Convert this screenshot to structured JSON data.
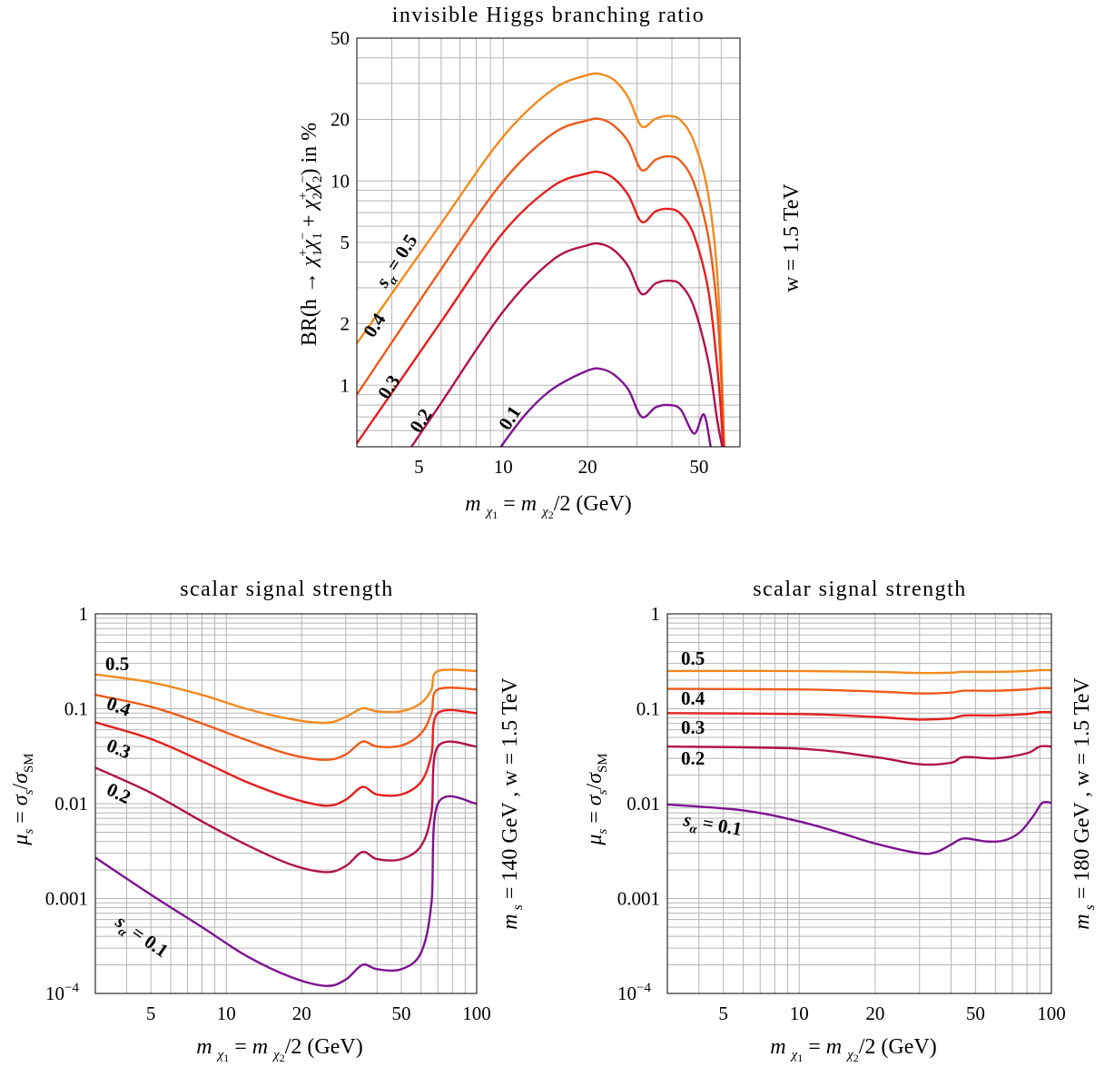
{
  "chart_data": [
    {
      "type": "line",
      "title": "invisible Higgs branching ratio",
      "xlabel": "m χ1 = m χ2/2  (GeV)",
      "ylabel": "BR(h → χ1+χ1− + χ2+χ2−)  in %",
      "side_label": "w = 1.5 TeV",
      "xscale": "log",
      "yscale": "log",
      "xlim": [
        3,
        70
      ],
      "ylim": [
        0.5,
        50
      ],
      "xticks": [
        {
          "v": 5,
          "label": "5"
        },
        {
          "v": 10,
          "label": "10"
        },
        {
          "v": 20,
          "label": "20"
        },
        {
          "v": 50,
          "label": "50"
        }
      ],
      "yticks": [
        {
          "v": 1,
          "label": "1"
        },
        {
          "v": 2,
          "label": "2"
        },
        {
          "v": 5,
          "label": "5"
        },
        {
          "v": 10,
          "label": "10"
        },
        {
          "v": 20,
          "label": "20"
        },
        {
          "v": 50,
          "label": "50"
        }
      ],
      "grid": true,
      "series": [
        {
          "name": "sα = 0.5",
          "color": "#f28a1e",
          "x": [
            3,
            6,
            10,
            15,
            20,
            22.5,
            25,
            28,
            31.2,
            35,
            39,
            43,
            48,
            54,
            58.5,
            61.5
          ],
          "y": [
            1.6,
            6.2,
            16.5,
            28,
            33,
            33.2,
            31,
            25.5,
            18.5,
            20.2,
            20.8,
            19.8,
            15.5,
            8.5,
            3,
            0.5
          ]
        },
        {
          "name": "0.4",
          "color": "#ee5a1a",
          "x": [
            3,
            6,
            10,
            15,
            20,
            22.5,
            25,
            28,
            31.2,
            35,
            39,
            43,
            48,
            54,
            58.5,
            61.5
          ],
          "y": [
            0.9,
            3.7,
            10,
            17,
            19.8,
            20,
            18.5,
            15.5,
            11.3,
            12.7,
            13.2,
            12.5,
            9.7,
            5.3,
            2,
            0.5
          ]
        },
        {
          "name": "0.3",
          "color": "#e41e1e",
          "x": [
            3,
            6,
            10,
            15,
            20,
            22.5,
            25,
            28,
            31.2,
            35,
            39,
            43,
            48,
            54,
            58.5,
            61
          ],
          "y": [
            0.52,
            2.05,
            5.6,
            9.4,
            10.9,
            11,
            10.2,
            8.5,
            6.3,
            7.1,
            7.3,
            6.9,
            5.4,
            2.9,
            1.1,
            0.5
          ]
        },
        {
          "name": "0.2",
          "color": "#b0124e",
          "x": [
            4.7,
            6,
            10,
            15,
            20,
            22.5,
            25,
            28,
            31.2,
            35,
            39,
            43,
            48,
            54,
            58,
            60.5
          ],
          "y": [
            0.5,
            0.82,
            2.3,
            4.1,
            4.85,
            4.9,
            4.55,
            3.8,
            2.8,
            3.15,
            3.25,
            3.1,
            2.4,
            1.3,
            0.68,
            0.5
          ]
        },
        {
          "name": "0.1",
          "color": "#7d1391",
          "x": [
            9.8,
            12,
            15,
            20,
            22.5,
            25,
            28,
            31.2,
            35,
            39,
            43,
            48,
            52,
            55
          ],
          "y": [
            0.5,
            0.72,
            0.96,
            1.18,
            1.2,
            1.12,
            0.95,
            0.7,
            0.78,
            0.8,
            0.76,
            0.58,
            0.72,
            0.5
          ]
        }
      ]
    },
    {
      "type": "line",
      "title": "scalar signal strength",
      "xlabel": "m χ1 = m χ2/2  (GeV)",
      "ylabel": "μs = σs/σSM",
      "side_label": "m s = 140 GeV ,  w = 1.5 TeV",
      "xscale": "log",
      "yscale": "log",
      "xlim": [
        3,
        100
      ],
      "ylim": [
        0.0001,
        1
      ],
      "xticks": [
        {
          "v": 5,
          "label": "5"
        },
        {
          "v": 10,
          "label": "10"
        },
        {
          "v": 20,
          "label": "20"
        },
        {
          "v": 50,
          "label": "50"
        },
        {
          "v": 100,
          "label": "100"
        }
      ],
      "yticks": [
        {
          "v": 0.0001,
          "label": "10",
          "sup": "−4"
        },
        {
          "v": 0.001,
          "label": "0.001"
        },
        {
          "v": 0.01,
          "label": "0.01"
        },
        {
          "v": 0.1,
          "label": "0.1"
        },
        {
          "v": 1,
          "label": "1"
        }
      ],
      "grid": true,
      "series": [
        {
          "name": "0.5",
          "color": "#f28a1e",
          "x": [
            3,
            5,
            8,
            12,
            18,
            25,
            30,
            35,
            40,
            50,
            60,
            66,
            70,
            100
          ],
          "y": [
            0.23,
            0.19,
            0.14,
            0.1,
            0.078,
            0.071,
            0.082,
            0.101,
            0.094,
            0.094,
            0.115,
            0.16,
            0.25,
            0.25
          ]
        },
        {
          "name": "0.4",
          "color": "#ee5a1a",
          "x": [
            3,
            5,
            8,
            12,
            18,
            25,
            30,
            35,
            40,
            50,
            60,
            66,
            70,
            100
          ],
          "y": [
            0.14,
            0.105,
            0.07,
            0.047,
            0.033,
            0.029,
            0.033,
            0.045,
            0.04,
            0.041,
            0.055,
            0.09,
            0.16,
            0.16
          ]
        },
        {
          "name": "0.3",
          "color": "#e41e1e",
          "x": [
            3,
            5,
            8,
            12,
            18,
            25,
            30,
            35,
            40,
            50,
            60,
            66,
            70,
            100
          ],
          "y": [
            0.072,
            0.048,
            0.028,
            0.017,
            0.0115,
            0.0095,
            0.011,
            0.015,
            0.0125,
            0.0125,
            0.017,
            0.033,
            0.09,
            0.09
          ]
        },
        {
          "name": "0.2",
          "color": "#b0124e",
          "x": [
            3,
            5,
            8,
            12,
            18,
            25,
            30,
            35,
            40,
            50,
            60,
            66,
            70,
            100
          ],
          "y": [
            0.024,
            0.013,
            0.0065,
            0.0037,
            0.0023,
            0.0019,
            0.0022,
            0.0031,
            0.0026,
            0.0026,
            0.0036,
            0.008,
            0.04,
            0.04
          ]
        },
        {
          "name": "sα = 0.1",
          "color": "#7d1391",
          "x": [
            3,
            5,
            8,
            12,
            18,
            25,
            30,
            35,
            40,
            50,
            60,
            66,
            70,
            100
          ],
          "y": [
            0.0027,
            0.0011,
            0.0005,
            0.00025,
            0.00015,
            0.00012,
            0.00014,
            0.0002,
            0.00018,
            0.00018,
            0.00027,
            0.0009,
            0.01,
            0.01
          ]
        }
      ]
    },
    {
      "type": "line",
      "title": "scalar signal strength",
      "xlabel": "m χ1 = m χ2/2  (GeV)",
      "ylabel": "μs = σs/σSM",
      "side_label": "m s = 180 GeV ,  w = 1.5 TeV",
      "xscale": "log",
      "yscale": "log",
      "xlim": [
        3,
        100
      ],
      "ylim": [
        0.0001,
        1
      ],
      "xticks": [
        {
          "v": 5,
          "label": "5"
        },
        {
          "v": 10,
          "label": "10"
        },
        {
          "v": 20,
          "label": "20"
        },
        {
          "v": 50,
          "label": "50"
        },
        {
          "v": 100,
          "label": "100"
        }
      ],
      "yticks": [
        {
          "v": 0.0001,
          "label": "10",
          "sup": "−4"
        },
        {
          "v": 0.001,
          "label": "0.001"
        },
        {
          "v": 0.01,
          "label": "0.01"
        },
        {
          "v": 0.1,
          "label": "0.1"
        },
        {
          "v": 1,
          "label": "1"
        }
      ],
      "grid": true,
      "series": [
        {
          "name": "0.5",
          "color": "#f28a1e",
          "x": [
            3,
            10,
            20,
            30,
            40,
            45,
            60,
            80,
            90,
            100
          ],
          "y": [
            0.25,
            0.25,
            0.245,
            0.238,
            0.24,
            0.245,
            0.245,
            0.25,
            0.255,
            0.255
          ]
        },
        {
          "name": "0.4",
          "color": "#ee5a1a",
          "x": [
            3,
            10,
            20,
            30,
            40,
            45,
            60,
            80,
            90,
            100
          ],
          "y": [
            0.162,
            0.16,
            0.152,
            0.145,
            0.148,
            0.155,
            0.155,
            0.16,
            0.165,
            0.165
          ]
        },
        {
          "name": "0.3",
          "color": "#e41e1e",
          "x": [
            3,
            10,
            20,
            30,
            40,
            45,
            60,
            80,
            90,
            100
          ],
          "y": [
            0.09,
            0.088,
            0.082,
            0.077,
            0.079,
            0.085,
            0.085,
            0.088,
            0.092,
            0.092
          ]
        },
        {
          "name": "0.2",
          "color": "#b0124e",
          "x": [
            3,
            10,
            20,
            30,
            40,
            45,
            60,
            80,
            90,
            100
          ],
          "y": [
            0.04,
            0.038,
            0.031,
            0.026,
            0.027,
            0.031,
            0.03,
            0.034,
            0.04,
            0.04
          ]
        },
        {
          "name": "sα = 0.1",
          "color": "#7d1391",
          "x": [
            3,
            6,
            10,
            15,
            20,
            30,
            35,
            40,
            45,
            55,
            65,
            75,
            85,
            92,
            100
          ],
          "y": [
            0.0098,
            0.0085,
            0.0065,
            0.0048,
            0.0038,
            0.003,
            0.0031,
            0.0037,
            0.0043,
            0.004,
            0.0041,
            0.005,
            0.0075,
            0.0102,
            0.0102
          ]
        }
      ]
    }
  ]
}
